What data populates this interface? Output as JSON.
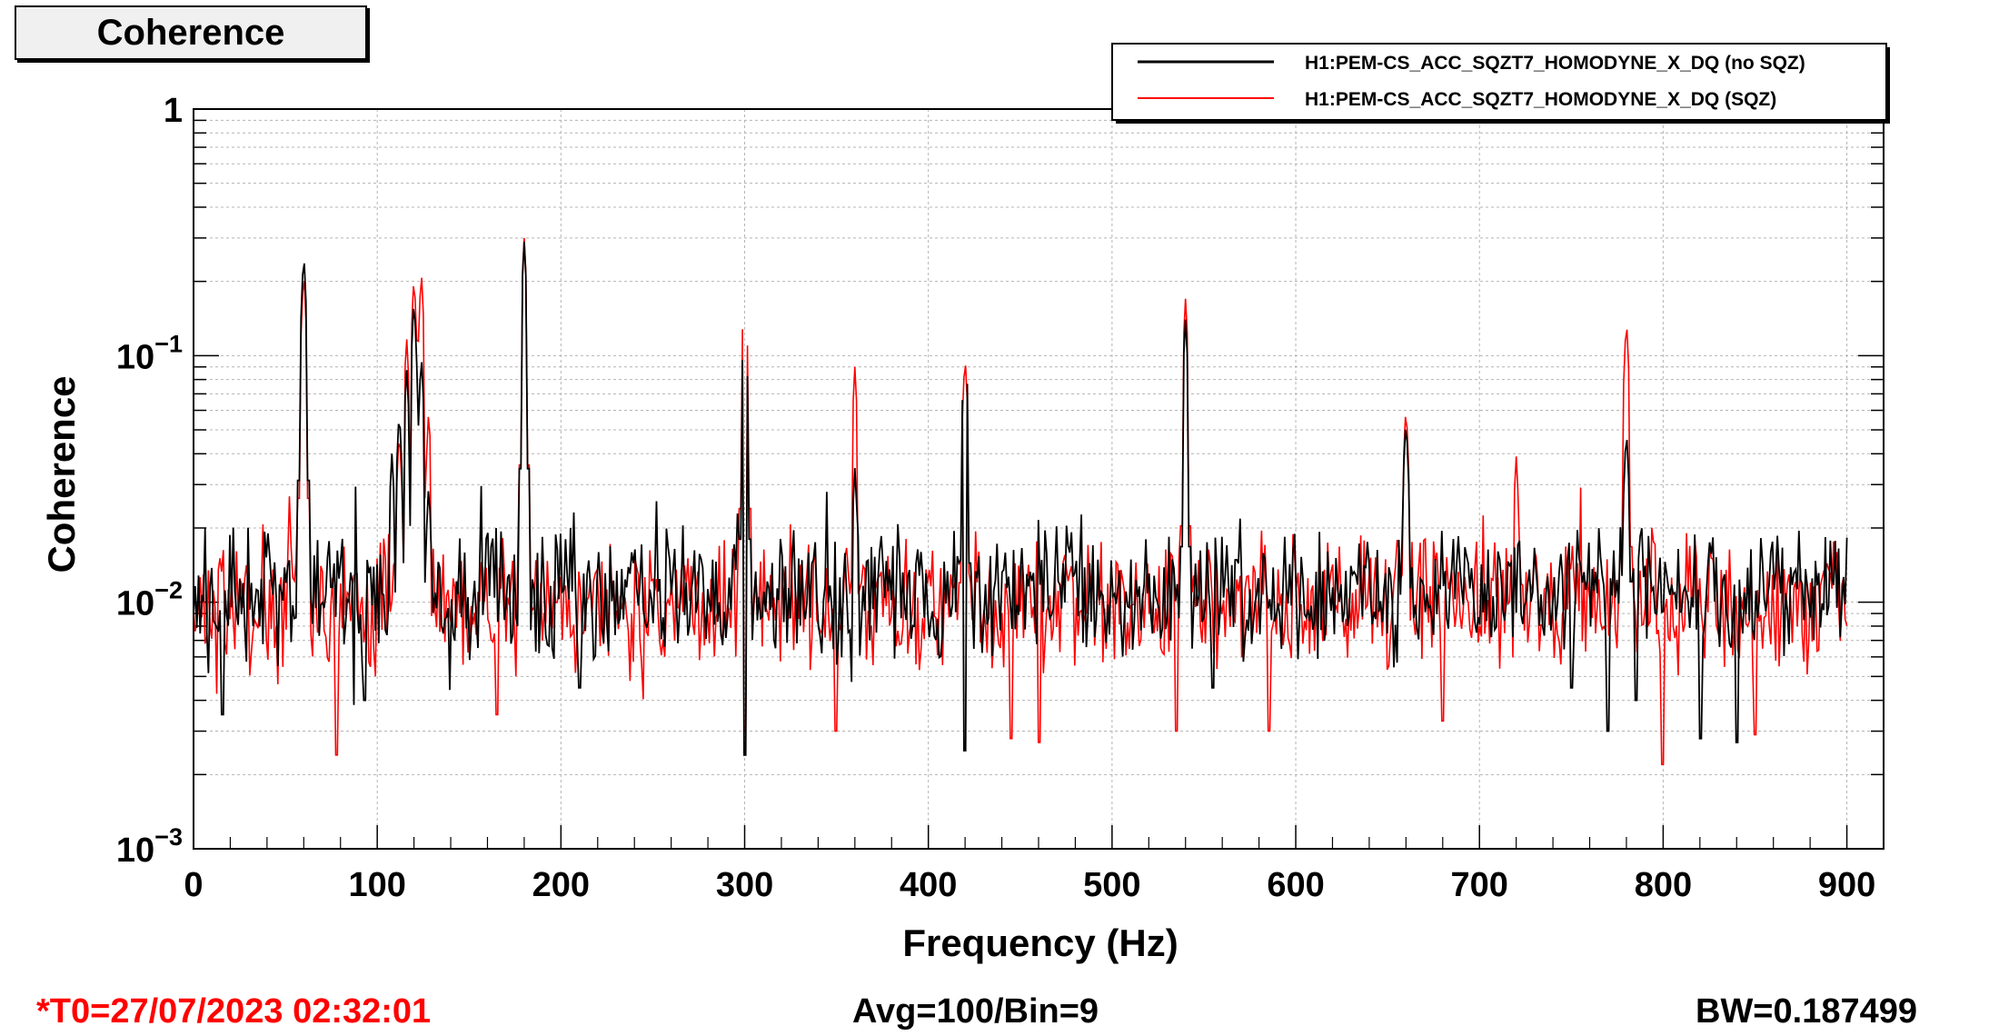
{
  "title_box": "Coherence",
  "footer": {
    "t0": "*T0=27/07/2023 02:32:01",
    "avg": "Avg=100/Bin=9",
    "bw": "BW=0.187499"
  },
  "colors": {
    "no_sqz": "#000000",
    "sqz": "#ff0000",
    "grid": "#b4b4b4"
  },
  "chart_data": {
    "type": "line",
    "title": "Coherence",
    "xlabel": "Frequency (Hz)",
    "ylabel": "Coherence",
    "xlim": [
      0,
      920
    ],
    "ylim": [
      0.001,
      1
    ],
    "yscale": "log",
    "x_ticks": [
      "0",
      "100",
      "200",
      "300",
      "400",
      "500",
      "600",
      "700",
      "800",
      "900"
    ],
    "y_ticks": [
      {
        "base": "10",
        "exp": "−3"
      },
      {
        "base": "10",
        "exp": "−2"
      },
      {
        "base": "10",
        "exp": "−1"
      },
      {
        "base": "1",
        "exp": ""
      }
    ],
    "grid": true,
    "legend_position": "top-right",
    "series": [
      {
        "name": "H1:PEM-CS_ACC_SQZT7_HOMODYNE_X_DQ (no SQZ)",
        "color": "#000000",
        "baseline": 0.011,
        "x_range": [
          0,
          900
        ],
        "peaks": [
          [
            60,
            0.26
          ],
          [
            108,
            0.04
          ],
          [
            112,
            0.06
          ],
          [
            116,
            0.09
          ],
          [
            120,
            0.17
          ],
          [
            124,
            0.1
          ],
          [
            128,
            0.03
          ],
          [
            180,
            0.29
          ],
          [
            300,
            0.15
          ],
          [
            360,
            0.035
          ],
          [
            420,
            0.12
          ],
          [
            540,
            0.14
          ],
          [
            660,
            0.055
          ],
          [
            780,
            0.05
          ]
        ],
        "dips": [
          [
            16,
            0.0035
          ],
          [
            93,
            0.004
          ],
          [
            210,
            0.0045
          ],
          [
            300,
            0.0024
          ],
          [
            420,
            0.0025
          ],
          [
            555,
            0.0045
          ],
          [
            750,
            0.0045
          ],
          [
            770,
            0.003
          ],
          [
            785,
            0.004
          ],
          [
            820,
            0.0028
          ],
          [
            840,
            0.0027
          ]
        ]
      },
      {
        "name": "H1:PEM-CS_ACC_SQZT7_HOMODYNE_X_DQ (SQZ)",
        "color": "#ff0000",
        "baseline": 0.01,
        "x_range": [
          0,
          900
        ],
        "peaks": [
          [
            60,
            0.22
          ],
          [
            112,
            0.05
          ],
          [
            116,
            0.12
          ],
          [
            120,
            0.21
          ],
          [
            124,
            0.22
          ],
          [
            128,
            0.06
          ],
          [
            180,
            0.3
          ],
          [
            300,
            0.2
          ],
          [
            360,
            0.09
          ],
          [
            420,
            0.1
          ],
          [
            540,
            0.17
          ],
          [
            660,
            0.062
          ],
          [
            720,
            0.039
          ],
          [
            780,
            0.14
          ]
        ],
        "dips": [
          [
            78,
            0.0024
          ],
          [
            165,
            0.0035
          ],
          [
            300,
            0.003
          ],
          [
            350,
            0.003
          ],
          [
            445,
            0.0028
          ],
          [
            460,
            0.0027
          ],
          [
            535,
            0.003
          ],
          [
            585,
            0.003
          ],
          [
            680,
            0.0033
          ],
          [
            800,
            0.0022
          ],
          [
            850,
            0.0029
          ]
        ]
      }
    ]
  }
}
